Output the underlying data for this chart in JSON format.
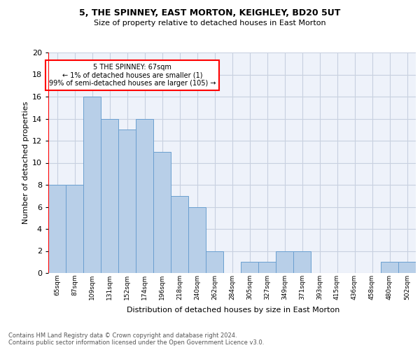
{
  "title1": "5, THE SPINNEY, EAST MORTON, KEIGHLEY, BD20 5UT",
  "title2": "Size of property relative to detached houses in East Morton",
  "xlabel": "Distribution of detached houses by size in East Morton",
  "ylabel": "Number of detached properties",
  "categories": [
    "65sqm",
    "87sqm",
    "109sqm",
    "131sqm",
    "152sqm",
    "174sqm",
    "196sqm",
    "218sqm",
    "240sqm",
    "262sqm",
    "284sqm",
    "305sqm",
    "327sqm",
    "349sqm",
    "371sqm",
    "393sqm",
    "415sqm",
    "436sqm",
    "458sqm",
    "480sqm",
    "502sqm"
  ],
  "values": [
    8,
    8,
    16,
    14,
    13,
    14,
    11,
    7,
    6,
    2,
    0,
    1,
    1,
    2,
    2,
    0,
    0,
    0,
    0,
    1,
    1
  ],
  "bar_color": "#b8cfe8",
  "bar_edge_color": "#6a9fd0",
  "annotation_text": "5 THE SPINNEY: 67sqm\n← 1% of detached houses are smaller (1)\n99% of semi-detached houses are larger (105) →",
  "annotation_box_color": "white",
  "annotation_box_edge_color": "red",
  "vline_color": "red",
  "ylim": [
    0,
    20
  ],
  "yticks": [
    0,
    2,
    4,
    6,
    8,
    10,
    12,
    14,
    16,
    18,
    20
  ],
  "footer1": "Contains HM Land Registry data © Crown copyright and database right 2024.",
  "footer2": "Contains public sector information licensed under the Open Government Licence v3.0.",
  "bg_color": "#eef2fa",
  "grid_color": "#c8d0e0"
}
